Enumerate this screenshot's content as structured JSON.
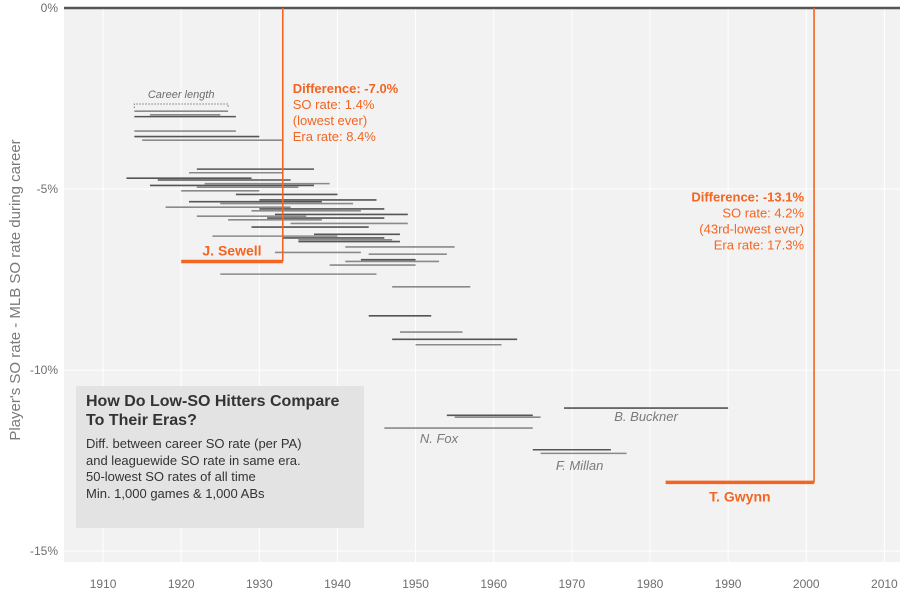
{
  "chart_data": {
    "type": "range",
    "title": "How Do Low-SO Hitters Compare To Their Eras?",
    "subtitle_lines": [
      "Diff. between career SO rate (per PA)",
      "and leaguewide SO rate in same era.",
      "50-lowest SO rates of all time",
      "Min. 1,000 games & 1,000 ABs"
    ],
    "ylabel": "Player's SO rate - MLB SO rate during career",
    "xlim": [
      1905,
      2012
    ],
    "ylim": [
      -15.3,
      0
    ],
    "x_ticks": [
      1910,
      1920,
      1930,
      1940,
      1950,
      1960,
      1970,
      1980,
      1990,
      2000,
      2010
    ],
    "y_ticks": [
      {
        "value": 0,
        "label": "0%"
      },
      {
        "value": -5,
        "label": "-5%"
      },
      {
        "value": -10,
        "label": "-10%"
      },
      {
        "value": -15,
        "label": "-15%"
      }
    ],
    "career_length_label": "Career length",
    "career_length_example": {
      "start": 1914,
      "end": 1926,
      "y": -2.65
    },
    "highlight_color": "#f26522",
    "gray_colors": [
      "#555555",
      "#8a8a8a"
    ],
    "careers": [
      {
        "start": 1914,
        "end": 1926,
        "y": -2.85,
        "tone": 1
      },
      {
        "start": 1916,
        "end": 1925,
        "y": -2.95,
        "tone": 1
      },
      {
        "start": 1914,
        "end": 1927,
        "y": -3.0,
        "tone": 0
      },
      {
        "start": 1914,
        "end": 1927,
        "y": -3.4,
        "tone": 1
      },
      {
        "start": 1914,
        "end": 1930,
        "y": -3.55,
        "tone": 0
      },
      {
        "start": 1915,
        "end": 1933,
        "y": -3.65,
        "tone": 1
      },
      {
        "start": 1922,
        "end": 1937,
        "y": -4.45,
        "tone": 0
      },
      {
        "start": 1921,
        "end": 1933,
        "y": -4.55,
        "tone": 1
      },
      {
        "start": 1913,
        "end": 1929,
        "y": -4.7,
        "tone": 0
      },
      {
        "start": 1917,
        "end": 1934,
        "y": -4.75,
        "tone": 0
      },
      {
        "start": 1923,
        "end": 1939,
        "y": -4.85,
        "tone": 1
      },
      {
        "start": 1916,
        "end": 1937,
        "y": -4.9,
        "tone": 0
      },
      {
        "start": 1922,
        "end": 1935,
        "y": -4.95,
        "tone": 1
      },
      {
        "start": 1920,
        "end": 1930,
        "y": -5.05,
        "tone": 1
      },
      {
        "start": 1927,
        "end": 1940,
        "y": -5.15,
        "tone": 0
      },
      {
        "start": 1930,
        "end": 1945,
        "y": -5.3,
        "tone": 0
      },
      {
        "start": 1921,
        "end": 1938,
        "y": -5.35,
        "tone": 0
      },
      {
        "start": 1925,
        "end": 1942,
        "y": -5.4,
        "tone": 1
      },
      {
        "start": 1918,
        "end": 1934,
        "y": -5.5,
        "tone": 1
      },
      {
        "start": 1930,
        "end": 1946,
        "y": -5.55,
        "tone": 0
      },
      {
        "start": 1929,
        "end": 1943,
        "y": -5.6,
        "tone": 1
      },
      {
        "start": 1932,
        "end": 1949,
        "y": -5.7,
        "tone": 0
      },
      {
        "start": 1922,
        "end": 1936,
        "y": -5.75,
        "tone": 1
      },
      {
        "start": 1931,
        "end": 1946,
        "y": -5.8,
        "tone": 0
      },
      {
        "start": 1926,
        "end": 1938,
        "y": -5.85,
        "tone": 1
      },
      {
        "start": 1934,
        "end": 1949,
        "y": -5.95,
        "tone": 1
      },
      {
        "start": 1929,
        "end": 1944,
        "y": -6.05,
        "tone": 0
      },
      {
        "start": 1937,
        "end": 1948,
        "y": -6.25,
        "tone": 0
      },
      {
        "start": 1924,
        "end": 1940,
        "y": -6.3,
        "tone": 1
      },
      {
        "start": 1933,
        "end": 1946,
        "y": -6.35,
        "tone": 0
      },
      {
        "start": 1935,
        "end": 1947,
        "y": -6.4,
        "tone": 1
      },
      {
        "start": 1935,
        "end": 1948,
        "y": -6.45,
        "tone": 0
      },
      {
        "start": 1941,
        "end": 1955,
        "y": -6.6,
        "tone": 1
      },
      {
        "start": 1932,
        "end": 1943,
        "y": -6.75,
        "tone": 1
      },
      {
        "start": 1944,
        "end": 1954,
        "y": -6.8,
        "tone": 1
      },
      {
        "start": 1943,
        "end": 1950,
        "y": -6.95,
        "tone": 0
      },
      {
        "start": 1939,
        "end": 1950,
        "y": -7.1,
        "tone": 1
      },
      {
        "start": 1941,
        "end": 1953,
        "y": -7.0,
        "tone": 1
      },
      {
        "start": 1925,
        "end": 1945,
        "y": -7.35,
        "tone": 1
      },
      {
        "start": 1947,
        "end": 1957,
        "y": -7.7,
        "tone": 1
      },
      {
        "start": 1944,
        "end": 1952,
        "y": -8.5,
        "tone": 0
      },
      {
        "start": 1948,
        "end": 1956,
        "y": -8.95,
        "tone": 1
      },
      {
        "start": 1947,
        "end": 1963,
        "y": -9.15,
        "tone": 0
      },
      {
        "start": 1950,
        "end": 1961,
        "y": -9.3,
        "tone": 1
      },
      {
        "start": 1969,
        "end": 1990,
        "y": -11.05,
        "tone": 0
      },
      {
        "start": 1954,
        "end": 1965,
        "y": -11.25,
        "tone": 0
      },
      {
        "start": 1955,
        "end": 1966,
        "y": -11.3,
        "tone": 1
      },
      {
        "start": 1946,
        "end": 1965,
        "y": -11.6,
        "tone": 1
      },
      {
        "start": 1965,
        "end": 1975,
        "y": -12.2,
        "tone": 0
      },
      {
        "start": 1966,
        "end": 1977,
        "y": -12.3,
        "tone": 1
      }
    ],
    "highlights": [
      {
        "name": "J. Sewell",
        "start": 1920,
        "end": 1933,
        "y": -7.0,
        "lines": [
          "Difference: -7.0%",
          "SO rate: 1.4%",
          "(lowest ever)",
          "Era rate: 8.4%"
        ]
      },
      {
        "name": "T. Gwynn",
        "start": 1982,
        "end": 2001,
        "y": -13.1,
        "lines": [
          "Difference: -13.1%",
          "SO rate: 4.2%",
          "(43rd-lowest ever)",
          "Era rate: 17.3%"
        ]
      }
    ],
    "named_gray": [
      {
        "name": "B. Buckner",
        "x": 1979.5,
        "y": -11.3
      },
      {
        "name": "N. Fox",
        "x": 1953,
        "y": -11.9
      },
      {
        "name": "F. Millan",
        "x": 1971,
        "y": -12.65
      }
    ]
  }
}
